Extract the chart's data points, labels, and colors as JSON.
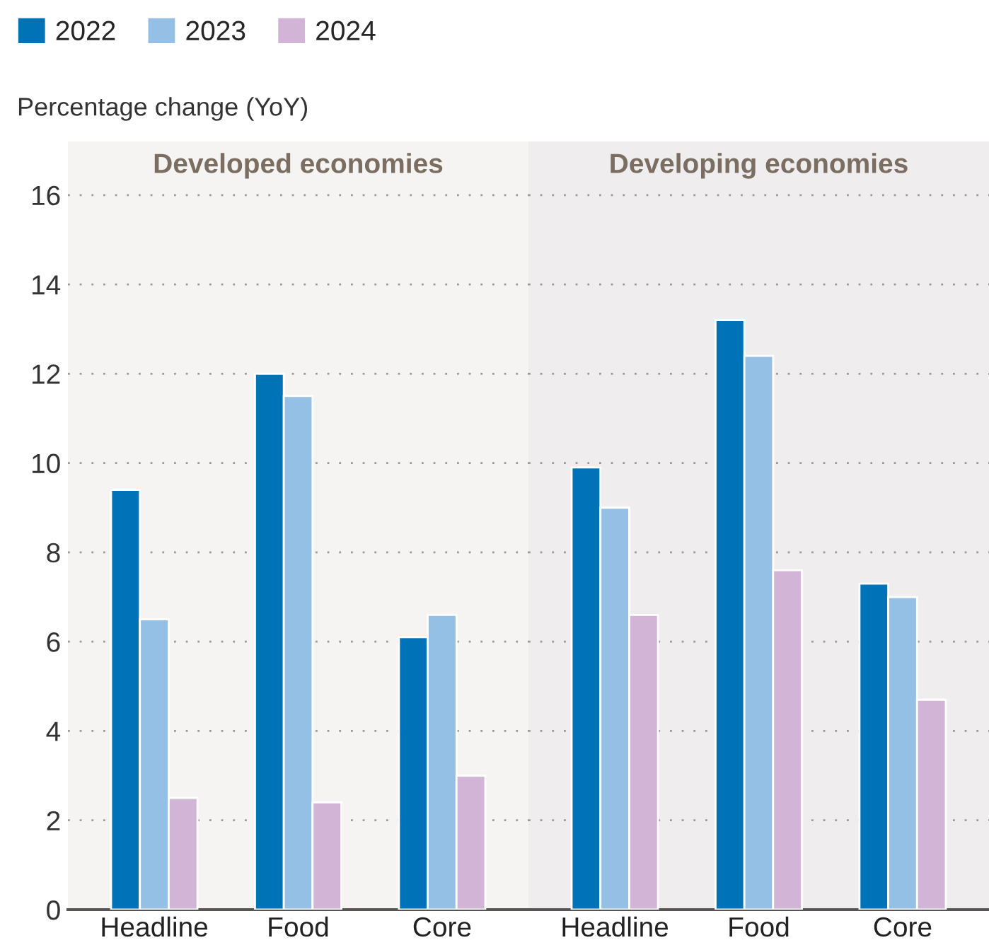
{
  "chart_data": [
    {
      "type": "bar",
      "title": "Developed economies",
      "ylabel": "Percentage change (YoY)",
      "categories": [
        "Headline",
        "Food",
        "Core"
      ],
      "series": [
        {
          "name": "2022",
          "color": "#0073b8",
          "values": [
            9.4,
            12.0,
            6.1
          ]
        },
        {
          "name": "2023",
          "color": "#94c0e6",
          "values": [
            6.5,
            11.5,
            6.6
          ]
        },
        {
          "name": "2024",
          "color": "#d2b4d6",
          "values": [
            2.5,
            2.4,
            3.0
          ]
        }
      ],
      "ylim": [
        0,
        17.2
      ],
      "yticks": [
        0,
        2,
        4,
        6,
        8,
        10,
        12,
        14,
        16
      ],
      "grid": "y",
      "legend": "top left"
    },
    {
      "type": "bar",
      "title": "Developing economies",
      "categories": [
        "Headline",
        "Food",
        "Core"
      ],
      "series": [
        {
          "name": "2022",
          "color": "#0073b8",
          "values": [
            9.9,
            13.2,
            7.3
          ]
        },
        {
          "name": "2023",
          "color": "#94c0e6",
          "values": [
            9.0,
            12.4,
            7.0
          ]
        },
        {
          "name": "2024",
          "color": "#d2b4d6",
          "values": [
            6.6,
            7.6,
            4.7
          ]
        }
      ],
      "ylim": [
        0,
        17.2
      ],
      "yticks": [
        0,
        2,
        4,
        6,
        8,
        10,
        12,
        14,
        16
      ],
      "grid": "y",
      "tick_labels": "x"
    }
  ]
}
